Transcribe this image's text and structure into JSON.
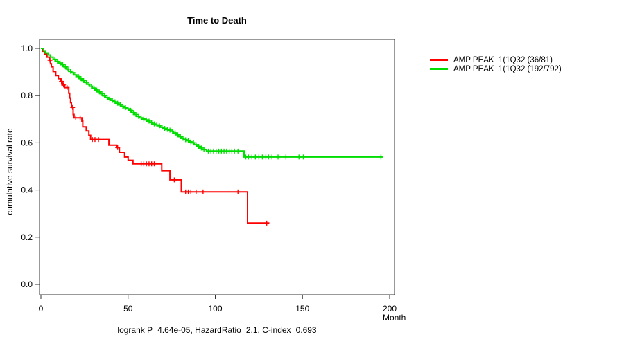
{
  "chart_data": {
    "type": "line",
    "subtype": "kaplan-meier-step-survival",
    "title": "Time to Death",
    "xlabel": "Month",
    "ylabel": "cumulative survival rate",
    "footer": "logrank P=4.64e-05, HazardRatio=2.1, C-index=0.693",
    "xlim": [
      0,
      200
    ],
    "ylim": [
      0.0,
      1.0
    ],
    "xticks": [
      0,
      50,
      100,
      150,
      200
    ],
    "yticks": [
      0.0,
      0.2,
      0.4,
      0.6,
      0.8,
      1.0
    ],
    "grid": false,
    "legend_position": "right-outside",
    "axis_color": "#333333",
    "series": [
      {
        "name": "AMP PEAK  1(1Q32 (36/81)",
        "color": "#ff0000",
        "end_time": 131,
        "steps": [
          [
            0,
            1.0
          ],
          [
            1,
            0.988
          ],
          [
            2,
            0.975
          ],
          [
            3.5,
            0.963
          ],
          [
            5,
            0.95
          ],
          [
            5.5,
            0.935
          ],
          [
            6,
            0.922
          ],
          [
            7,
            0.902
          ],
          [
            8.5,
            0.885
          ],
          [
            10,
            0.872
          ],
          [
            11.5,
            0.86
          ],
          [
            12.5,
            0.845
          ],
          [
            13.5,
            0.834
          ],
          [
            16,
            0.81
          ],
          [
            16.5,
            0.79
          ],
          [
            17,
            0.77
          ],
          [
            17.5,
            0.75
          ],
          [
            18.5,
            0.72
          ],
          [
            19,
            0.706
          ],
          [
            23.5,
            0.692
          ],
          [
            24,
            0.668
          ],
          [
            26,
            0.65
          ],
          [
            27.5,
            0.632
          ],
          [
            28.5,
            0.614
          ],
          [
            39,
            0.59
          ],
          [
            43.5,
            0.58
          ],
          [
            45,
            0.56
          ],
          [
            48,
            0.54
          ],
          [
            50,
            0.526
          ],
          [
            52.8,
            0.511
          ],
          [
            69.3,
            0.482
          ],
          [
            74,
            0.443
          ],
          [
            80.5,
            0.392
          ],
          [
            118.5,
            0.26
          ]
        ],
        "censor_times": [
          5.2,
          11.8,
          13,
          15,
          18.2,
          20,
          22.5,
          29.5,
          31,
          33,
          44,
          57.5,
          59,
          60.5,
          62,
          63.5,
          65,
          76.5,
          83,
          84.5,
          86,
          89,
          93,
          113,
          129.5
        ]
      },
      {
        "name": "AMP PEAK  1(1Q32 (192/792)",
        "color": "#00dd00",
        "end_time": 196,
        "steps": [
          [
            0,
            1.0
          ],
          [
            1.5,
            0.99
          ],
          [
            2.5,
            0.981
          ],
          [
            4,
            0.972
          ],
          [
            5.5,
            0.963
          ],
          [
            7,
            0.954
          ],
          [
            8.5,
            0.945
          ],
          [
            10,
            0.938
          ],
          [
            11.5,
            0.931
          ],
          [
            13,
            0.922
          ],
          [
            14.5,
            0.913
          ],
          [
            16,
            0.903
          ],
          [
            17.5,
            0.897
          ],
          [
            19,
            0.888
          ],
          [
            20.5,
            0.881
          ],
          [
            22,
            0.872
          ],
          [
            23.5,
            0.864
          ],
          [
            25,
            0.856
          ],
          [
            26.5,
            0.848
          ],
          [
            28,
            0.84
          ],
          [
            29.5,
            0.832
          ],
          [
            31,
            0.824
          ],
          [
            32.5,
            0.816
          ],
          [
            34,
            0.808
          ],
          [
            35.5,
            0.799
          ],
          [
            37,
            0.792
          ],
          [
            38.5,
            0.786
          ],
          [
            40,
            0.78
          ],
          [
            41.5,
            0.774
          ],
          [
            43,
            0.768
          ],
          [
            44.5,
            0.761
          ],
          [
            46,
            0.755
          ],
          [
            47.5,
            0.749
          ],
          [
            49,
            0.744
          ],
          [
            50.5,
            0.738
          ],
          [
            52,
            0.728
          ],
          [
            53.5,
            0.72
          ],
          [
            55,
            0.712
          ],
          [
            56.5,
            0.706
          ],
          [
            58,
            0.701
          ],
          [
            59.5,
            0.697
          ],
          [
            61,
            0.692
          ],
          [
            62.5,
            0.686
          ],
          [
            64,
            0.68
          ],
          [
            65.5,
            0.676
          ],
          [
            67,
            0.672
          ],
          [
            68.5,
            0.666
          ],
          [
            70,
            0.661
          ],
          [
            71.5,
            0.657
          ],
          [
            73,
            0.654
          ],
          [
            74.5,
            0.649
          ],
          [
            76,
            0.642
          ],
          [
            77.5,
            0.634
          ],
          [
            79,
            0.626
          ],
          [
            80.5,
            0.619
          ],
          [
            82,
            0.613
          ],
          [
            83.5,
            0.609
          ],
          [
            85,
            0.604
          ],
          [
            86.5,
            0.6
          ],
          [
            88,
            0.592
          ],
          [
            89.5,
            0.585
          ],
          [
            91,
            0.578
          ],
          [
            92.5,
            0.571
          ],
          [
            95,
            0.565
          ],
          [
            116.5,
            0.54
          ]
        ],
        "censor_times": [
          8,
          9.5,
          11,
          12.5,
          14,
          15.5,
          17,
          18.5,
          20,
          21.5,
          23,
          24.5,
          26,
          27.5,
          29,
          30.5,
          32,
          33.5,
          35,
          36.5,
          38,
          39.5,
          41,
          42.5,
          44,
          45.5,
          47,
          48.5,
          50,
          51.5,
          53,
          54.5,
          56,
          57.5,
          59,
          60.5,
          62,
          63.5,
          65,
          66.5,
          68,
          69.5,
          71,
          72.5,
          74,
          75.5,
          77,
          78.5,
          80,
          81.5,
          83,
          84.5,
          86,
          87.5,
          89,
          90.5,
          92,
          93.5,
          96,
          97.5,
          99,
          100.5,
          102,
          103.5,
          105,
          106.5,
          108,
          109.5,
          111,
          113,
          117.5,
          119,
          121,
          123,
          125,
          127,
          129,
          130.5,
          132.5,
          136,
          140.5,
          148,
          150.5,
          195
        ]
      }
    ]
  }
}
